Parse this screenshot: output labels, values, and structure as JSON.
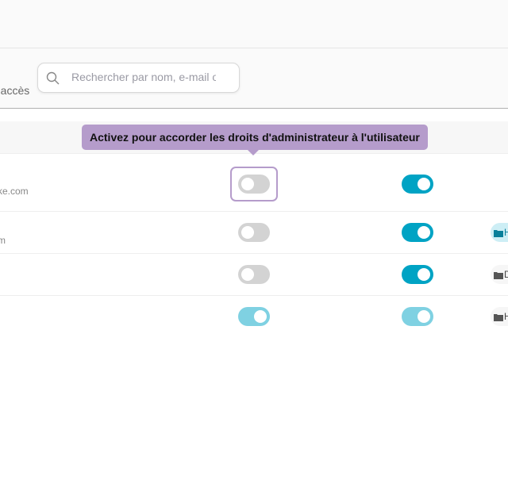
{
  "toolbar": {
    "access_label": "'accès",
    "search_placeholder": "Rechercher par nom, e-mail ou"
  },
  "tooltip": {
    "text": "Activez pour accorder les droits d'administrateur à l'utilisateur"
  },
  "rows": [
    {
      "email": "ke.com",
      "admin": false,
      "access": true,
      "tag": ""
    },
    {
      "email": "m",
      "admin": false,
      "access": true,
      "tag": "H"
    },
    {
      "email": "",
      "admin": false,
      "access": true,
      "tag": "D"
    },
    {
      "email": "",
      "admin": true,
      "access": true,
      "disabled": true,
      "tag": "H"
    }
  ],
  "colors": {
    "accent": "#00a3c4",
    "tooltip": "#b59ccb"
  }
}
